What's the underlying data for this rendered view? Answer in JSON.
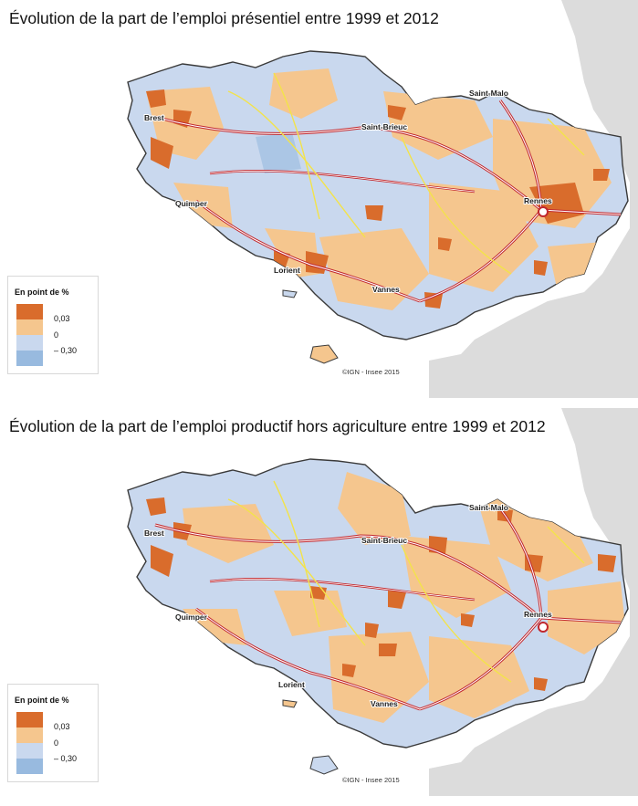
{
  "colors": {
    "sea": "#ffffff",
    "land_outside": "#dcdcdc",
    "class_strong_increase": "#d96c2c",
    "class_increase": "#f5c68e",
    "class_decrease": "#c9d8ee",
    "class_strong_decrease": "#98badf",
    "commune_border": "#ffffff",
    "epci_border": "#3a3a3a",
    "road_motorway": "#c1272d",
    "road_secondary": "#f3e34a"
  },
  "panels": [
    {
      "title": "Évolution de la part de l’emploi présentiel entre 1999 et 2012",
      "cities": [
        "Saint-Malo",
        "Brest",
        "Saint-Brieuc",
        "Quimper",
        "Rennes",
        "Lorient",
        "Vannes"
      ],
      "legend": {
        "title": "En point de %",
        "break_high": "0,03",
        "break_mid": "0",
        "break_low": "– 0,30"
      },
      "credit": "©IGN - Insee 2015"
    },
    {
      "title": "Évolution de la part de l’emploi productif hors agriculture entre 1999 et 2012",
      "cities": [
        "Saint-Malo",
        "Brest",
        "Saint-Brieuc",
        "Quimper",
        "Rennes",
        "Lorient",
        "Vannes"
      ],
      "legend": {
        "title": "En point de %",
        "break_high": "0,03",
        "break_mid": "0",
        "break_low": "– 0,30"
      },
      "credit": "©IGN - Insee 2015"
    }
  ]
}
